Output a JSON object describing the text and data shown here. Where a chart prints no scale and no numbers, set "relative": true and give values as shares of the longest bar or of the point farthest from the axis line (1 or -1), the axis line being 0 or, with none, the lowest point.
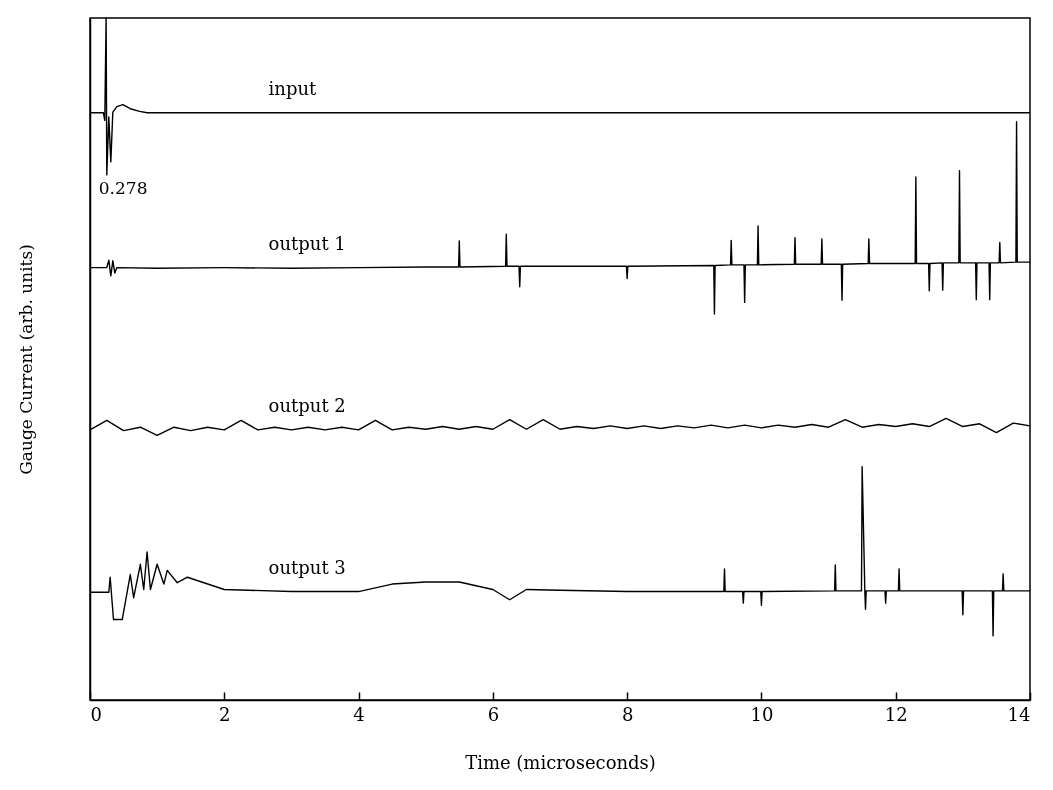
{
  "chart_data": {
    "type": "line",
    "relative": true,
    "xlabel": "Time (microseconds)",
    "ylabel": "Gauge Current (arb. units)",
    "xlim": [
      0,
      14
    ],
    "xticks": [
      0,
      2,
      4,
      6,
      8,
      10,
      12,
      14
    ],
    "tick_labels": "x",
    "grid": false,
    "marker": "none",
    "line_style": "solid",
    "annotations": [
      {
        "text": "0.278",
        "x": 0.25,
        "y": 0.77
      }
    ],
    "series": [
      {
        "name": "input",
        "color": "#000000",
        "x": [
          0,
          0.2,
          0.22,
          0.24,
          0.25,
          0.28,
          0.31,
          0.34,
          0.4,
          0.49,
          0.6,
          0.74,
          0.85,
          14
        ],
        "values": [
          0.861,
          0.861,
          0.85,
          1.0,
          0.77,
          0.855,
          0.789,
          0.862,
          0.87,
          0.873,
          0.867,
          0.863,
          0.861,
          0.861
        ]
      },
      {
        "name": "output 1",
        "color": "#000000",
        "x": [
          0,
          0.25,
          0.28,
          0.31,
          0.34,
          0.37,
          0.4,
          1,
          2,
          3,
          4,
          5,
          5.49,
          5.5,
          5.51,
          6.19,
          6.2,
          6.21,
          6.39,
          6.4,
          6.41,
          7.99,
          8.0,
          8.01,
          9.29,
          9.3,
          9.31,
          9.54,
          9.55,
          9.56,
          9.74,
          9.75,
          9.76,
          9.94,
          9.95,
          9.96,
          10.49,
          10.5,
          10.51,
          10.89,
          10.9,
          10.91,
          11.19,
          11.2,
          11.21,
          11.59,
          11.6,
          11.61,
          12.29,
          12.3,
          12.31,
          12.49,
          12.5,
          12.51,
          12.69,
          12.7,
          12.71,
          12.94,
          12.95,
          12.96,
          13.19,
          13.2,
          13.21,
          13.39,
          13.4,
          13.41,
          13.54,
          13.55,
          13.56,
          13.79,
          13.8,
          13.81,
          14
        ],
        "values": [
          0.634,
          0.634,
          0.645,
          0.622,
          0.644,
          0.626,
          0.634,
          0.633,
          0.634,
          0.633,
          0.634,
          0.635,
          0.635,
          0.673,
          0.635,
          0.636,
          0.683,
          0.636,
          0.636,
          0.606,
          0.636,
          0.636,
          0.618,
          0.636,
          0.637,
          0.566,
          0.637,
          0.638,
          0.674,
          0.638,
          0.638,
          0.583,
          0.638,
          0.638,
          0.695,
          0.638,
          0.639,
          0.678,
          0.639,
          0.639,
          0.676,
          0.639,
          0.639,
          0.586,
          0.639,
          0.64,
          0.676,
          0.64,
          0.64,
          0.767,
          0.64,
          0.64,
          0.6,
          0.64,
          0.641,
          0.601,
          0.641,
          0.641,
          0.776,
          0.641,
          0.641,
          0.587,
          0.641,
          0.641,
          0.587,
          0.641,
          0.641,
          0.671,
          0.641,
          0.642,
          0.848,
          0.642,
          0.642
        ]
      },
      {
        "name": "output 2",
        "color": "#000000",
        "x": [
          0,
          0.25,
          0.5,
          0.75,
          1,
          1.25,
          1.5,
          1.75,
          2,
          2.25,
          2.5,
          2.75,
          3,
          3.25,
          3.5,
          3.75,
          4,
          4.25,
          4.5,
          4.75,
          5,
          5.25,
          5.5,
          5.75,
          6,
          6.25,
          6.5,
          6.75,
          7,
          7.25,
          7.5,
          7.75,
          8,
          8.25,
          8.5,
          8.75,
          9,
          9.25,
          9.5,
          9.75,
          10,
          10.25,
          10.5,
          10.75,
          11,
          11.25,
          11.5,
          11.75,
          12,
          12.25,
          12.5,
          12.75,
          13,
          13.25,
          13.5,
          13.75,
          14
        ],
        "values": [
          0.396,
          0.41,
          0.395,
          0.4,
          0.388,
          0.4,
          0.395,
          0.4,
          0.396,
          0.41,
          0.396,
          0.4,
          0.396,
          0.4,
          0.396,
          0.4,
          0.396,
          0.41,
          0.396,
          0.4,
          0.397,
          0.401,
          0.397,
          0.401,
          0.397,
          0.411,
          0.397,
          0.411,
          0.397,
          0.401,
          0.398,
          0.402,
          0.398,
          0.402,
          0.398,
          0.402,
          0.399,
          0.403,
          0.399,
          0.403,
          0.399,
          0.403,
          0.4,
          0.404,
          0.4,
          0.411,
          0.4,
          0.404,
          0.401,
          0.405,
          0.401,
          0.413,
          0.401,
          0.405,
          0.392,
          0.406,
          0.402
        ]
      },
      {
        "name": "output 3",
        "color": "#000000",
        "x": [
          0,
          0.28,
          0.3,
          0.35,
          0.48,
          0.6,
          0.65,
          0.75,
          0.8,
          0.85,
          0.9,
          1.0,
          1.1,
          1.15,
          1.3,
          1.45,
          2,
          3,
          4,
          4.5,
          5,
          5.5,
          6,
          6.25,
          6.5,
          7,
          8,
          9.44,
          9.45,
          9.46,
          9.72,
          9.73,
          9.74,
          9.99,
          10.0,
          10.01,
          11.09,
          11.1,
          11.11,
          11.49,
          11.5,
          11.54,
          11.55,
          11.56,
          11.84,
          11.85,
          11.86,
          12.04,
          12.05,
          12.06,
          12.99,
          13.0,
          13.01,
          13.44,
          13.45,
          13.46,
          13.59,
          13.6,
          13.61,
          14
        ],
        "values": [
          0.158,
          0.158,
          0.18,
          0.118,
          0.118,
          0.184,
          0.15,
          0.199,
          0.162,
          0.217,
          0.162,
          0.199,
          0.17,
          0.19,
          0.172,
          0.18,
          0.162,
          0.159,
          0.159,
          0.17,
          0.173,
          0.173,
          0.162,
          0.147,
          0.162,
          0.161,
          0.159,
          0.159,
          0.192,
          0.159,
          0.159,
          0.142,
          0.159,
          0.159,
          0.139,
          0.159,
          0.16,
          0.198,
          0.16,
          0.16,
          0.342,
          0.16,
          0.133,
          0.16,
          0.16,
          0.142,
          0.16,
          0.16,
          0.192,
          0.16,
          0.16,
          0.125,
          0.16,
          0.16,
          0.094,
          0.16,
          0.16,
          0.185,
          0.16,
          0.16
        ]
      }
    ]
  }
}
